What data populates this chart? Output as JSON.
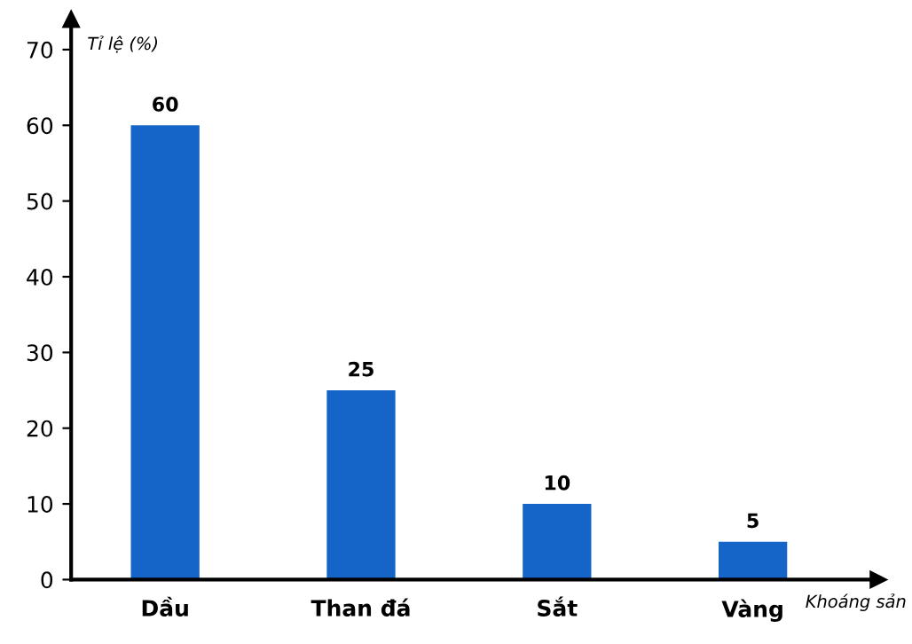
{
  "chart_data": {
    "type": "bar",
    "xlabel": "Khoáng sản",
    "ylabel": "Tỉ lệ (%)",
    "categories": [
      "Dầu",
      "Than đá",
      "Sắt",
      "Vàng"
    ],
    "values": [
      60,
      25,
      10,
      5
    ],
    "color": "#1565c8",
    "ylim": [
      0,
      74
    ],
    "yticks": [
      0,
      10,
      20,
      30,
      40,
      50,
      60,
      70
    ],
    "grid": false,
    "data_labels": true
  }
}
